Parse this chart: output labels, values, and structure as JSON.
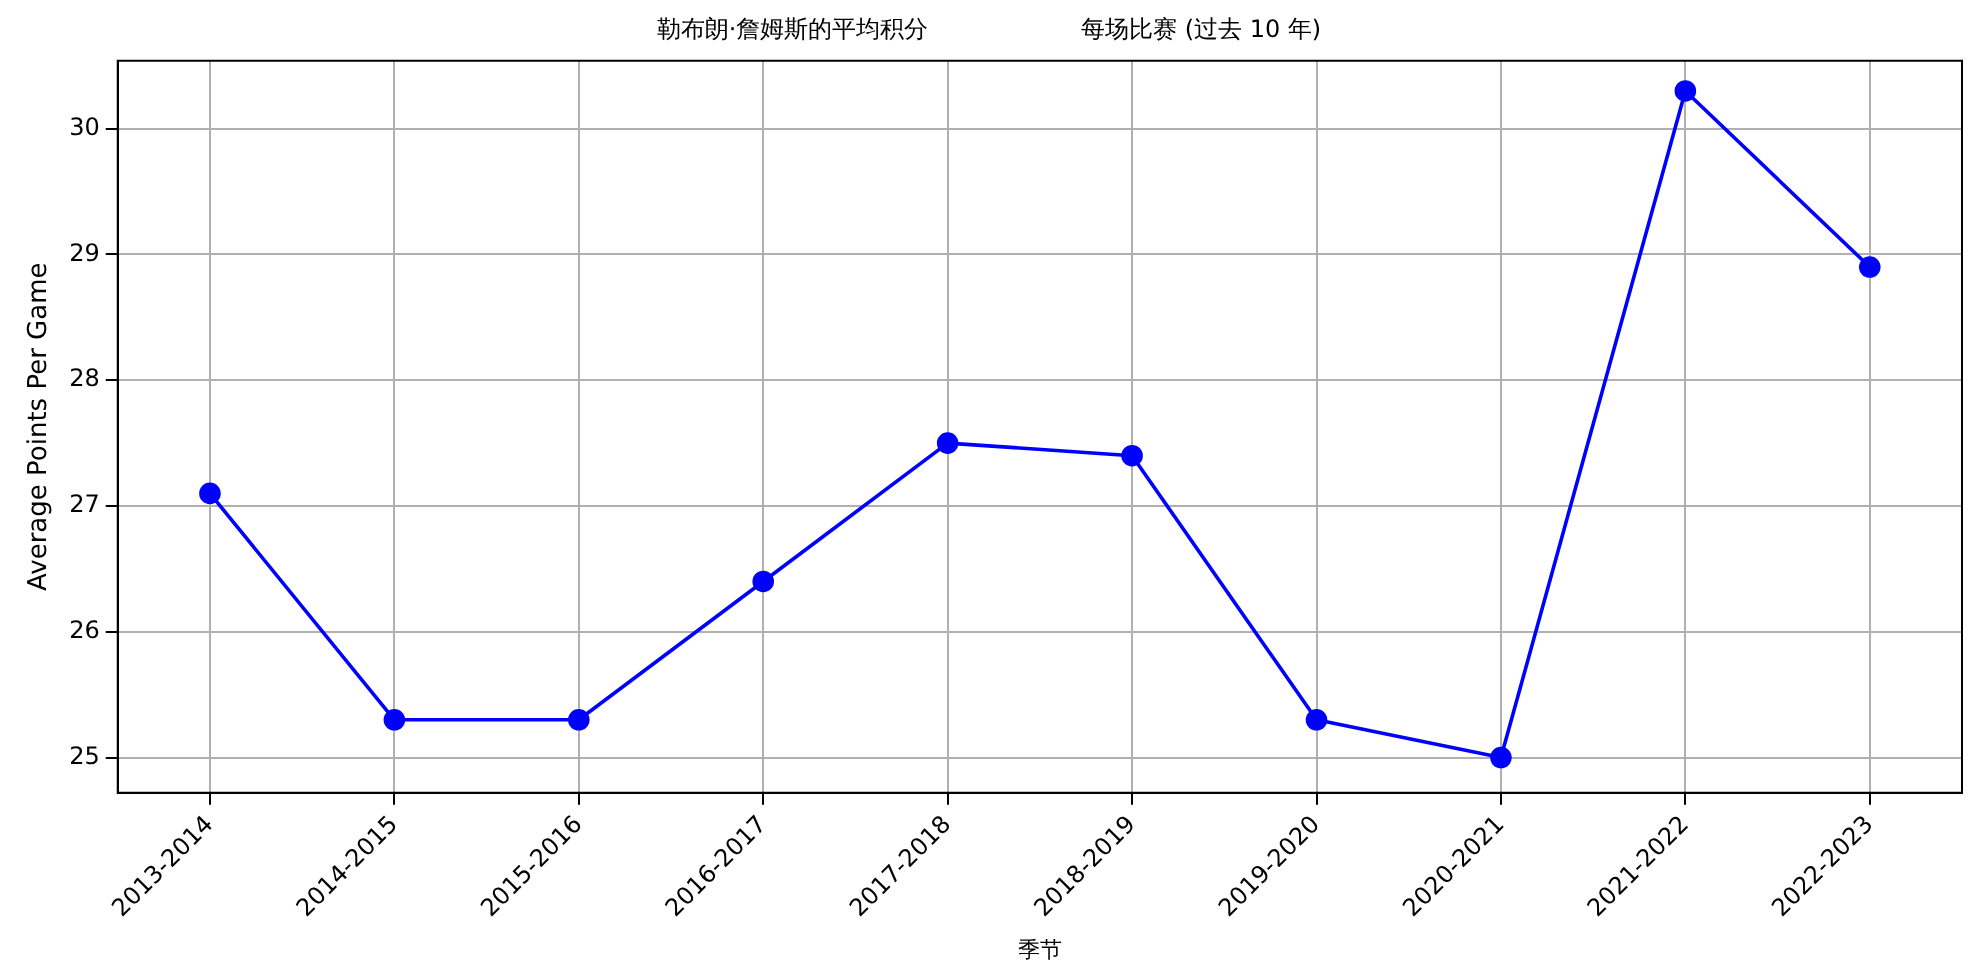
{
  "chart_data": {
    "type": "line",
    "title": "勒布朗·詹姆斯的平均积分                    每场比赛 (过去 10 年)",
    "xlabel": "季节",
    "ylabel": "Average Points Per Game",
    "categories": [
      "2013-2014",
      "2014-2015",
      "2015-2016",
      "2016-2017",
      "2017-2018",
      "2018-2019",
      "2019-2020",
      "2020-2021",
      "2021-2022",
      "2022-2023"
    ],
    "series": [
      {
        "color": "#0000ff",
        "values": [
          27.1,
          25.3,
          25.3,
          26.4,
          27.5,
          27.4,
          25.3,
          25.0,
          30.3,
          28.9
        ]
      }
    ],
    "ylim": [
      24.72,
      30.54
    ],
    "yticks": [
      25,
      26,
      27,
      28,
      29,
      30
    ],
    "grid": true,
    "marker": "circle",
    "line_style": "solid"
  }
}
